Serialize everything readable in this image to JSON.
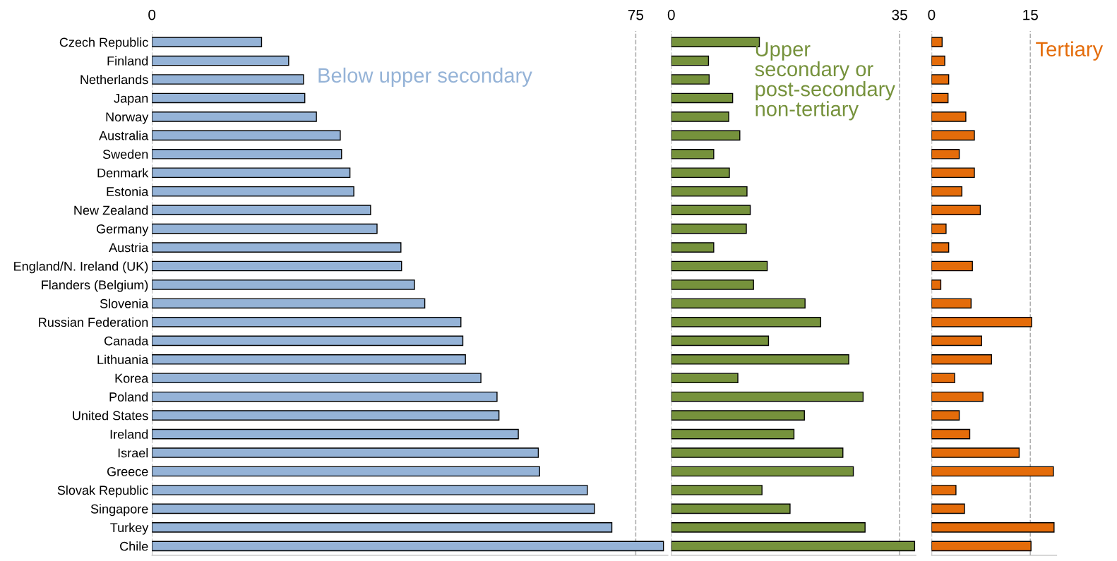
{
  "chart_data": [
    {
      "type": "bar",
      "orientation": "horizontal",
      "categories": [
        "Czech Republic",
        "Finland",
        "Netherlands",
        "Japan",
        "Norway",
        "Australia",
        "Sweden",
        "Denmark",
        "Estonia",
        "New Zealand",
        "Germany",
        "Austria",
        "England/N. Ireland (UK)",
        "Flanders (Belgium)",
        "Slovenia",
        "Russian Federation",
        "Canada",
        "Lithuania",
        "Korea",
        "Poland",
        "United States",
        "Ireland",
        "Israel",
        "Greece",
        "Slovak Republic",
        "Singapore",
        "Turkey",
        "Chile"
      ],
      "series": [
        {
          "name": "Below upper secondary",
          "color": "#95b3d7",
          "values": [
            17.0,
            21.2,
            23.5,
            23.7,
            25.5,
            29.2,
            29.4,
            30.7,
            31.3,
            33.9,
            34.9,
            38.6,
            38.7,
            40.7,
            42.3,
            47.9,
            48.2,
            48.6,
            51.0,
            53.5,
            53.8,
            56.8,
            59.9,
            60.1,
            67.5,
            68.6,
            71.3,
            79.3
          ]
        }
      ],
      "xlim": [
        0,
        80
      ],
      "xticks": [
        0,
        75
      ],
      "grid": "x",
      "legend": false
    },
    {
      "type": "bar",
      "orientation": "horizontal",
      "categories": [
        null,
        null,
        null,
        null,
        null,
        null,
        null,
        null,
        null,
        null,
        null,
        null,
        null,
        null,
        null,
        null,
        null,
        null,
        null,
        null,
        null,
        null,
        null,
        null,
        null,
        null,
        null,
        null
      ],
      "series": [
        {
          "name": "Upper secondary or post-secondary non-tertiary",
          "color": "#76923c",
          "values": [
            13.5,
            5.7,
            5.8,
            9.4,
            8.8,
            10.5,
            6.5,
            8.9,
            11.6,
            12.1,
            11.5,
            6.5,
            14.7,
            12.6,
            20.5,
            22.9,
            14.9,
            27.2,
            10.2,
            29.4,
            20.4,
            18.8,
            26.3,
            27.9,
            13.9,
            18.2,
            29.7,
            37.3
          ]
        }
      ],
      "xlim": [
        0,
        37.5
      ],
      "xticks": [
        0,
        35
      ],
      "grid": "x",
      "legend": false,
      "tick_labels": "x"
    },
    {
      "type": "bar",
      "orientation": "horizontal",
      "categories": [
        null,
        null,
        null,
        null,
        null,
        null,
        null,
        null,
        null,
        null,
        null,
        null,
        null,
        null,
        null,
        null,
        null,
        null,
        null,
        null,
        null,
        null,
        null,
        null,
        null,
        null,
        null,
        null
      ],
      "series": [
        {
          "name": "Tertiary",
          "color": "#e46c0a",
          "values": [
            1.6,
            2.0,
            2.6,
            2.5,
            5.2,
            6.5,
            4.2,
            6.5,
            4.6,
            7.4,
            2.2,
            2.6,
            6.2,
            1.4,
            6.0,
            15.2,
            7.6,
            9.1,
            3.5,
            7.8,
            4.2,
            5.8,
            13.3,
            18.5,
            3.7,
            5.0,
            18.6,
            15.1
          ]
        }
      ],
      "xlim": [
        0,
        19
      ],
      "xticks": [
        0,
        15
      ],
      "grid": "x",
      "legend": false,
      "tick_labels": "x"
    }
  ]
}
